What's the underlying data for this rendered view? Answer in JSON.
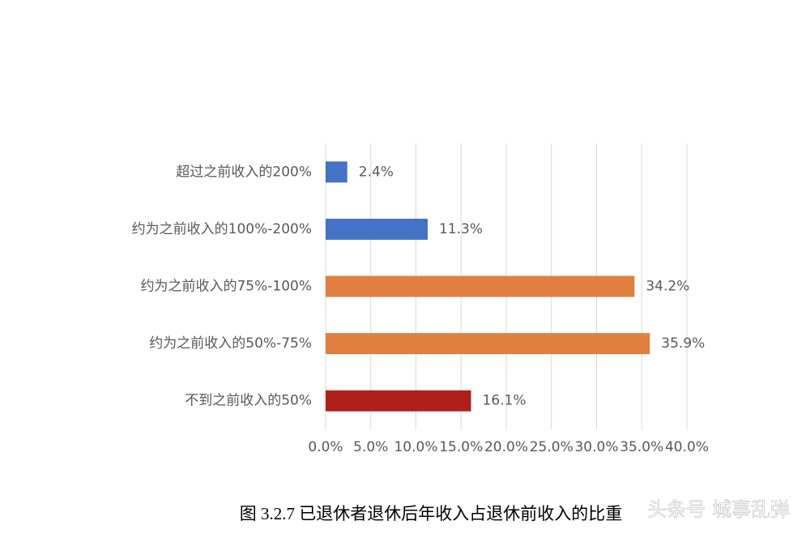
{
  "chart_data": {
    "type": "bar",
    "orientation": "horizontal",
    "categories": [
      "超过之前收入的200%",
      "约为之前收入的100%-200%",
      "约为之前收入的75%-100%",
      "约为之前收入的50%-75%",
      "不到之前收入的50%"
    ],
    "values": [
      2.4,
      11.3,
      34.2,
      35.9,
      16.1
    ],
    "value_labels": [
      "2.4%",
      "11.3%",
      "34.2%",
      "35.9%",
      "16.1%"
    ],
    "colors": [
      "#4472c4",
      "#4472c4",
      "#e07f3f",
      "#e07f3f",
      "#b0201b"
    ],
    "xlim": [
      0,
      40
    ],
    "xticks": [
      {
        "value": 0,
        "label": "0.0%"
      },
      {
        "value": 5,
        "label": "5.0%"
      },
      {
        "value": 10,
        "label": "10.0%"
      },
      {
        "value": 15,
        "label": "15.0%"
      },
      {
        "value": 20,
        "label": "20.0%"
      },
      {
        "value": 25,
        "label": "25.0%"
      },
      {
        "value": 30,
        "label": "30.0%"
      },
      {
        "value": 35,
        "label": "35.0%"
      },
      {
        "value": 40,
        "label": "40.0%"
      }
    ],
    "grid": true,
    "caption": "图 3.2.7  已退休者退休后年收入占退休前收入的比重",
    "watermark": "头条号 城事乱弹"
  }
}
